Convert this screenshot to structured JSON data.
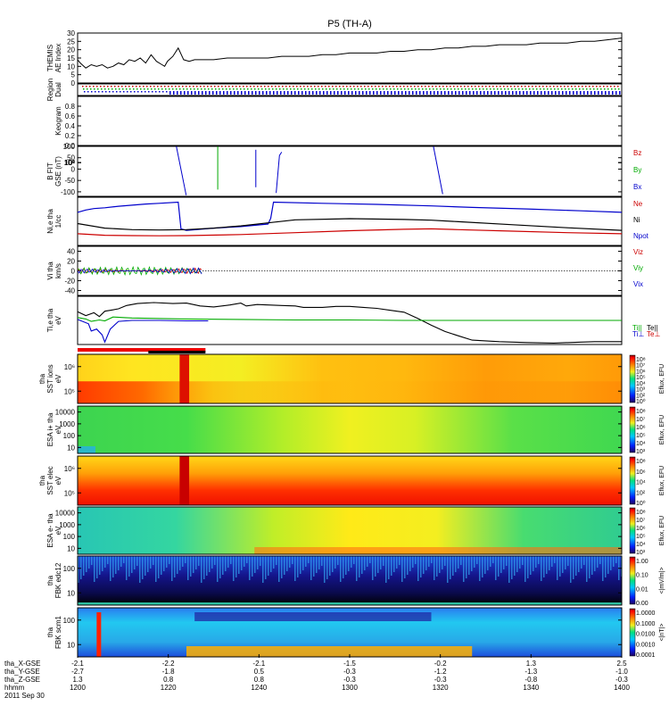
{
  "chart_data": {
    "type": "line",
    "title": "P5 (TH-A)",
    "time_axis": {
      "rows": [
        {
          "label": "tha_X-GSE",
          "values": [
            "-2.1",
            "-2.2",
            "-2.1",
            "-1.5",
            "-0.2",
            "1.3",
            "2.5"
          ]
        },
        {
          "label": "tha_Y-GSE",
          "values": [
            "-2.7",
            "-1.8",
            "0.5",
            "-0.3",
            "-1.2",
            "-1.3",
            "-1.0"
          ]
        },
        {
          "label": "tha_Z-GSE",
          "values": [
            "1.3",
            "0.8",
            "0.8",
            "-0.3",
            "-0.3",
            "-0.8",
            "-0.3"
          ]
        },
        {
          "label": "hhmm",
          "values": [
            "1200",
            "1220",
            "1240",
            "1300",
            "1320",
            "1340",
            "1400"
          ]
        }
      ],
      "date": "2011 Sep 30"
    },
    "panels": {
      "ae": {
        "ylabel1": "THEMIS",
        "ylabel2": "AE Index",
        "yticks": [
          "30",
          "25",
          "20",
          "15",
          "10",
          "5",
          "0"
        ],
        "ylim": [
          0,
          30
        ],
        "series": [
          {
            "color": "#000000",
            "x": [
              1200,
              1201,
              1203,
              1205,
              1207,
              1209,
              1211,
              1213,
              1215,
              1217,
              1219,
              1221,
              1223,
              1225,
              1227,
              1229,
              1231,
              1232,
              1233,
              1235,
              1237,
              1239,
              1241,
              1243,
              1245,
              1250,
              1255,
              1260,
              1265,
              1270,
              1275,
              1280,
              1285,
              1290,
              1295,
              1300,
              1305,
              1310,
              1315,
              1320,
              1325,
              1330,
              1335,
              1340,
              1345,
              1350,
              1355,
              1360,
              1365,
              1370,
              1375,
              1380,
              1385,
              1390,
              1395,
              1400
            ],
            "y": [
              14,
              12,
              9,
              11,
              10,
              11,
              9,
              10,
              12,
              11,
              14,
              13,
              15,
              12,
              17,
              13,
              11,
              10,
              13,
              16,
              21,
              14,
              13,
              14,
              14,
              14,
              15,
              15,
              15,
              15,
              16,
              16,
              16,
              17,
              17,
              18,
              18,
              18,
              19,
              19,
              20,
              20,
              21,
              21,
              22,
              22,
              23,
              23,
              23,
              24,
              24,
              24,
              25,
              25,
              26,
              27
            ]
          }
        ]
      },
      "region": {
        "ylabel1": "Region",
        "ylabel2": "Dual"
      },
      "keogram": {
        "ylabel1": "Keogram",
        "yticks": [
          "0.8",
          "0.6",
          "0.4",
          "0.2",
          "0.0"
        ],
        "ylim": [
          0,
          1
        ]
      },
      "bfit": {
        "ylabel1": "B FIT",
        "ylabel2": "GSE (nT)",
        "yticks": [
          "100",
          "50",
          "0",
          "-50",
          "-100"
        ],
        "ylim": [
          -120,
          100
        ],
        "legend": [
          {
            "label": "Bz",
            "color": "#cc0000"
          },
          {
            "label": "By",
            "color": "#00aa00"
          },
          {
            "label": "Bx",
            "color": "#0000cc"
          }
        ],
        "segments": [
          {
            "color": "#0000cc",
            "x": [
              1236.3,
              1239.9
            ],
            "y": [
              100,
              -115
            ]
          },
          {
            "color": "#00aa00",
            "x": [
              1251.5,
              1251.5
            ],
            "y": [
              100,
              -90
            ]
          },
          {
            "color": "#0000cc",
            "x": [
              1265.5,
              1265.5
            ],
            "y": [
              85,
              -80
            ]
          },
          {
            "color": "#0000cc",
            "x": [
              1275.0,
              1274.2,
              1273.0
            ],
            "y": [
              75,
              60,
              -105
            ]
          },
          {
            "color": "#0000cc",
            "x": [
              1330.8,
              1334.2
            ],
            "y": [
              100,
              -110
            ]
          }
        ]
      },
      "density": {
        "ylabel1": "Ni,e tha",
        "ylabel2": "1/cc",
        "yticks": [
          "10⁴",
          "10²",
          "10⁰"
        ],
        "ylim": [
          0,
          5
        ],
        "legend": [
          {
            "label": "Ne",
            "color": "#cc0000"
          },
          {
            "label": "Ni",
            "color": "#000000"
          },
          {
            "label": "Npot",
            "color": "#0000cc"
          }
        ],
        "series": [
          {
            "color": "#0000cc",
            "x": [
              1200,
              1203,
              1206,
              1210,
              1215,
              1220,
              1225,
              1230,
              1237,
              1238,
              1240,
              1250,
              1260,
              1270,
              1271,
              1272,
              1290,
              1310,
              1330,
              1345,
              1365,
              1385,
              1400
            ],
            "y": [
              3.4,
              3.7,
              3.9,
              4.0,
              4.2,
              4.35,
              4.5,
              4.6,
              4.75,
              1.2,
              1.0,
              1.3,
              1.5,
              1.85,
              2.6,
              4.75,
              4.6,
              4.45,
              4.25,
              4.05,
              3.85,
              3.6,
              3.4
            ]
          },
          {
            "color": "#000000",
            "x": [
              1200,
              1210,
              1220,
              1230,
              1240,
              1250,
              1260,
              1270,
              1280,
              1300,
              1320,
              1330,
              1340,
              1360,
              1380,
              1400
            ],
            "y": [
              1.9,
              1.3,
              1.1,
              1.05,
              1.1,
              1.3,
              1.6,
              2.0,
              2.4,
              2.55,
              2.45,
              2.35,
              2.15,
              1.75,
              1.35,
              1.0
            ]
          },
          {
            "color": "#cc0000",
            "x": [
              1200,
              1210,
              1220,
              1230,
              1240,
              1260,
              1280,
              1300,
              1320,
              1330,
              1340,
              1360,
              1380,
              1400
            ],
            "y": [
              0.55,
              0.35,
              0.3,
              0.28,
              0.3,
              0.45,
              0.7,
              0.95,
              1.15,
              1.2,
              1.1,
              0.9,
              0.7,
              0.55
            ]
          }
        ]
      },
      "velocity": {
        "ylabel1": "Vi tha",
        "ylabel2": "km/s",
        "yticks": [
          "40",
          "20",
          "0",
          "-20",
          "-40"
        ],
        "ylim": [
          -50,
          50
        ],
        "legend": [
          {
            "label": "Viz",
            "color": "#cc0000"
          },
          {
            "label": "Viy",
            "color": "#00aa00"
          },
          {
            "label": "Vix",
            "color": "#0000cc"
          }
        ]
      },
      "temperature": {
        "ylabel1": "Ti,e tha",
        "ylabel2": "eV",
        "yticks": [
          "100"
        ],
        "ylim": [
          0,
          10
        ],
        "legend_top": [
          {
            "label": "Ti||",
            "color": "#00aa00"
          },
          {
            "label": "Te||",
            "color": "#000000"
          }
        ],
        "legend_bottom": [
          {
            "label": "Ti⊥",
            "color": "#0000cc"
          },
          {
            "label": "Te⊥",
            "color": "#cc0000"
          }
        ],
        "series": [
          {
            "color": "#000000",
            "x": [
              1200,
              1203,
              1206,
              1208,
              1210,
              1212,
              1215,
              1218,
              1222,
              1228,
              1235,
              1240,
              1245,
              1250,
              1256,
              1260,
              1262,
              1266,
              1270,
              1275,
              1280,
              1283,
              1290,
              1295,
              1300,
              1305,
              1310,
              1315,
              1320,
              1325,
              1330,
              1335,
              1340,
              1345,
              1355,
              1365,
              1375,
              1385,
              1390,
              1400
            ],
            "y": [
              6.8,
              6.0,
              6.6,
              5.8,
              6.9,
              7.1,
              7.4,
              8.1,
              8.5,
              8.7,
              8.5,
              8.6,
              8.0,
              7.8,
              8.2,
              8.6,
              8.0,
              8.3,
              8.2,
              8.1,
              8.0,
              7.7,
              7.7,
              7.9,
              7.9,
              7.7,
              7.5,
              7.1,
              6.7,
              5.4,
              4.0,
              2.7,
              1.8,
              0.9,
              0.6,
              0.4,
              0.3,
              0.5,
              0.6,
              0.6
            ]
          },
          {
            "color": "#00aa00",
            "x": [
              1200,
              1203,
              1205,
              1208,
              1210,
              1213,
              1220,
              1240,
              1260,
              1280,
              1300,
              1320,
              1340,
              1360,
              1380,
              1400
            ],
            "y": [
              5.6,
              5.3,
              4.8,
              5.1,
              4.9,
              5.7,
              5.5,
              5.3,
              5.2,
              5.1,
              5.1,
              5.0,
              5.0,
              5.0,
              5.0,
              5.0
            ]
          },
          {
            "color": "#0000cc",
            "x": [
              1200,
              1204,
              1205,
              1207,
              1209,
              1210,
              1212,
              1215,
              1220,
              1230,
              1240,
              1248
            ],
            "y": [
              5.2,
              4.3,
              2.8,
              3.2,
              2.0,
              0.5,
              3.2,
              4.8,
              5.0,
              5.0,
              4.9,
              4.9
            ]
          }
        ]
      },
      "spectra": [
        {
          "ylabel1": "tha",
          "ylabel2": "SST ions",
          "ylabel3": "eV",
          "yticks": [
            "10⁶",
            "10⁵"
          ],
          "cbar_ticks": [
            "10⁸",
            "10⁷",
            "10⁶",
            "10⁵",
            "10⁴",
            "10³",
            "10²",
            "10⁰"
          ],
          "cbar_label": "Eflux, EFU"
        },
        {
          "ylabel1": "ESA i+ tha",
          "ylabel2": "eV",
          "yticks": [
            "10000",
            "1000",
            "100",
            "10"
          ],
          "cbar_ticks": [
            "10⁸",
            "10⁷",
            "10⁶",
            "10⁵",
            "10⁴",
            "10³"
          ],
          "cbar_label": "Eflux, EFU"
        },
        {
          "ylabel1": "tha",
          "ylabel2": "SST elec",
          "ylabel3": "eV",
          "yticks": [
            "10⁶",
            "10⁵"
          ],
          "cbar_ticks": [
            "10⁸",
            "10⁶",
            "10⁴",
            "10²",
            "10⁰"
          ],
          "cbar_label": "Eflux, EFU"
        },
        {
          "ylabel1": "ESA e- tha",
          "ylabel2": "eV",
          "yticks": [
            "10000",
            "1000",
            "100",
            "10"
          ],
          "cbar_ticks": [
            "10⁸",
            "10⁷",
            "10⁶",
            "10⁵",
            "10⁴",
            "10³"
          ],
          "cbar_label": "Eflux, EFU"
        },
        {
          "ylabel1": "tha",
          "ylabel2": "FBK edc12",
          "yticks": [
            "100",
            "10"
          ],
          "cbar_ticks": [
            "1.00",
            "0.10",
            "0.01",
            "0.00"
          ],
          "cbar_label": "<|mV/m|>"
        },
        {
          "ylabel1": "tha",
          "ylabel2": "FBK scm1",
          "yticks": [
            "100",
            "10"
          ],
          "cbar_ticks": [
            "1.0000",
            "0.1000",
            "0.0100",
            "0.0010",
            "0.0001"
          ],
          "cbar_label": "<|nT|>"
        }
      ]
    }
  }
}
